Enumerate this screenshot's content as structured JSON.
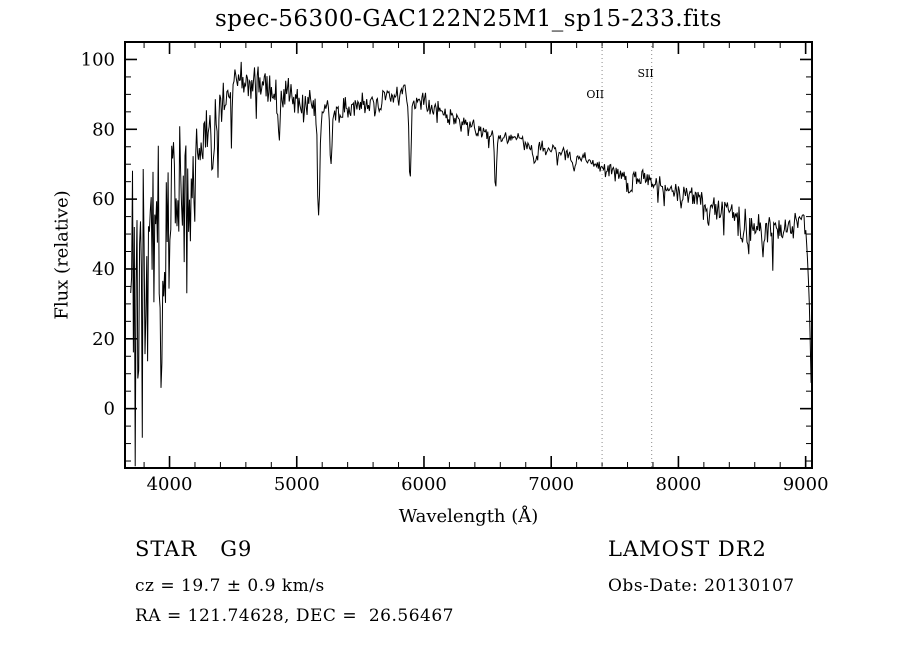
{
  "chart_data": {
    "type": "line",
    "title": "spec-56300-GAC122N25M1_sp15-233.fits",
    "xlabel": "Wavelength (Å)",
    "ylabel": "Flux (relative)",
    "xlim": [
      3650,
      9050
    ],
    "ylim": [
      -17,
      105
    ],
    "xticks": [
      4000,
      5000,
      6000,
      7000,
      8000,
      9000
    ],
    "yticks": [
      0,
      20,
      40,
      60,
      80,
      100
    ],
    "x_minor_step": 200,
    "y_minor_step": 5,
    "grid": false,
    "line_color": "#000000",
    "marker_line_color": "#8a8a8a",
    "spectral_lines": [
      {
        "label": "OII",
        "wavelength": 7400,
        "label_y": 89
      },
      {
        "label": "SII",
        "wavelength": 7790,
        "label_y": 95
      }
    ],
    "spectrum": {
      "seed": 20130107,
      "step": 7,
      "range": [
        3695,
        9045
      ],
      "continuum": [
        [
          3690,
          42
        ],
        [
          3750,
          48
        ],
        [
          3800,
          52
        ],
        [
          3850,
          55
        ],
        [
          3900,
          58
        ],
        [
          3950,
          60
        ],
        [
          4000,
          64
        ],
        [
          4050,
          67
        ],
        [
          4100,
          69
        ],
        [
          4200,
          72
        ],
        [
          4300,
          80
        ],
        [
          4400,
          87
        ],
        [
          4500,
          92
        ],
        [
          4600,
          95
        ],
        [
          4700,
          94
        ],
        [
          4800,
          91
        ],
        [
          4900,
          90
        ],
        [
          5000,
          89
        ],
        [
          5100,
          88
        ],
        [
          5200,
          86
        ],
        [
          5300,
          85
        ],
        [
          5400,
          86
        ],
        [
          5500,
          87
        ],
        [
          5600,
          88
        ],
        [
          5700,
          89
        ],
        [
          5800,
          90
        ],
        [
          5900,
          89
        ],
        [
          6000,
          88
        ],
        [
          6100,
          86
        ],
        [
          6200,
          84
        ],
        [
          6300,
          82
        ],
        [
          6400,
          81
        ],
        [
          6500,
          79
        ],
        [
          6600,
          78
        ],
        [
          6700,
          77
        ],
        [
          6800,
          76
        ],
        [
          6900,
          75
        ],
        [
          7000,
          74
        ],
        [
          7100,
          73
        ],
        [
          7200,
          72
        ],
        [
          7300,
          71
        ],
        [
          7400,
          69
        ],
        [
          7500,
          68
        ],
        [
          7600,
          67
        ],
        [
          7700,
          66
        ],
        [
          7800,
          65
        ],
        [
          7900,
          63
        ],
        [
          8000,
          62
        ],
        [
          8100,
          61
        ],
        [
          8200,
          60
        ],
        [
          8300,
          58
        ],
        [
          8400,
          56
        ],
        [
          8500,
          55
        ],
        [
          8600,
          53
        ],
        [
          8700,
          52
        ],
        [
          8800,
          51
        ],
        [
          8900,
          52
        ],
        [
          8950,
          55
        ],
        [
          9000,
          52
        ],
        [
          9020,
          40
        ],
        [
          9035,
          20
        ],
        [
          9045,
          4
        ]
      ],
      "noise_amp": [
        [
          3690,
          30
        ],
        [
          3750,
          30
        ],
        [
          3850,
          26
        ],
        [
          3950,
          22
        ],
        [
          4050,
          18
        ],
        [
          4150,
          14
        ],
        [
          4250,
          11
        ],
        [
          4350,
          9
        ],
        [
          4500,
          7
        ],
        [
          4700,
          6
        ],
        [
          5000,
          5
        ],
        [
          5300,
          4.5
        ],
        [
          5600,
          4
        ],
        [
          6000,
          3.2
        ],
        [
          6500,
          2.8
        ],
        [
          7000,
          2.5
        ],
        [
          7500,
          2.5
        ],
        [
          8000,
          3
        ],
        [
          8400,
          3.5
        ],
        [
          8700,
          4.5
        ],
        [
          9000,
          5
        ],
        [
          9045,
          3
        ]
      ],
      "spike_prob": [
        [
          3690,
          0.35
        ],
        [
          3900,
          0.3
        ],
        [
          4100,
          0.22
        ],
        [
          4300,
          0.15
        ],
        [
          4600,
          0.08
        ],
        [
          5000,
          0.06
        ],
        [
          5500,
          0.05
        ],
        [
          6000,
          0.05
        ],
        [
          7000,
          0.05
        ],
        [
          8000,
          0.06
        ],
        [
          8500,
          0.08
        ],
        [
          9000,
          0.08
        ]
      ],
      "absorption_features": [
        {
          "center": 3934,
          "sigma": 12,
          "depth": 25
        },
        {
          "center": 3968,
          "sigma": 10,
          "depth": 22
        },
        {
          "center": 4101,
          "sigma": 9,
          "depth": 15
        },
        {
          "center": 4340,
          "sigma": 9,
          "depth": 14
        },
        {
          "center": 4861,
          "sigma": 9,
          "depth": 12
        },
        {
          "center": 5175,
          "sigma": 10,
          "depth": 26
        },
        {
          "center": 5269,
          "sigma": 8,
          "depth": 16
        },
        {
          "center": 5890,
          "sigma": 9,
          "depth": 22
        },
        {
          "center": 6563,
          "sigma": 9,
          "depth": 13
        },
        {
          "center": 6870,
          "sigma": 10,
          "depth": 6
        },
        {
          "center": 7180,
          "sigma": 10,
          "depth": 4
        },
        {
          "center": 7620,
          "sigma": 14,
          "depth": 6
        },
        {
          "center": 8230,
          "sigma": 12,
          "depth": 6
        },
        {
          "center": 8500,
          "sigma": 8,
          "depth": 7
        },
        {
          "center": 8545,
          "sigma": 8,
          "depth": 8
        },
        {
          "center": 8665,
          "sigma": 8,
          "depth": 7
        }
      ]
    }
  },
  "annotations": {
    "class_label": "STAR   G9",
    "survey": "LAMOST DR2",
    "cz": "cz = 19.7 ± 0.9 km/s",
    "obs_date": "Obs-Date: 20130107",
    "coords": "RA = 121.74628, DEC =  26.56467"
  }
}
